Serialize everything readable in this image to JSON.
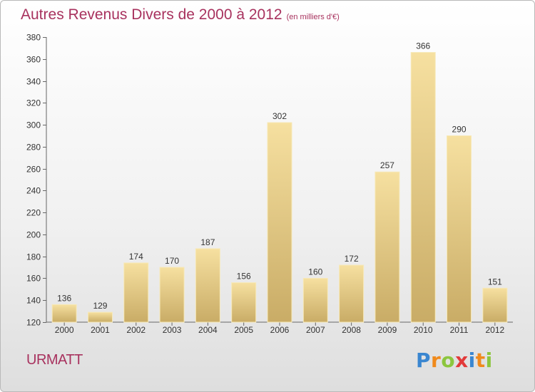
{
  "title": "Autres Revenus Divers de 2000 à 2012",
  "unit": "(en milliers d'€)",
  "place": "URMATT",
  "logo": {
    "letters": [
      {
        "ch": "P",
        "color": "#3a86d0"
      },
      {
        "ch": "r",
        "color": "#f08a1c"
      },
      {
        "ch": "o",
        "color": "#8cc63e"
      },
      {
        "ch": "x",
        "color": "#e23a3a"
      },
      {
        "ch": "i",
        "color": "#3a86d0"
      },
      {
        "ch": "t",
        "color": "#f08a1c"
      },
      {
        "ch": "i",
        "color": "#8cc63e"
      }
    ]
  },
  "chart_data": {
    "type": "bar",
    "title": "Autres Revenus Divers de 2000 à 2012",
    "categories": [
      "2000",
      "2001",
      "2002",
      "2003",
      "2004",
      "2005",
      "2006",
      "2007",
      "2008",
      "2009",
      "2010",
      "2011",
      "2012"
    ],
    "values": [
      136,
      129,
      174,
      170,
      187,
      156,
      302,
      160,
      172,
      257,
      366,
      290,
      151
    ],
    "ylim": [
      120,
      380
    ],
    "yticks": [
      120,
      140,
      160,
      180,
      200,
      220,
      240,
      260,
      280,
      300,
      320,
      340,
      360,
      380
    ],
    "bar_color": "#e8cc7e",
    "grid": false
  }
}
